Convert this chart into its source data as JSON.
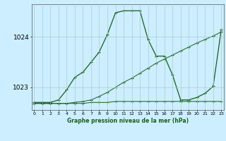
{
  "title": "Graphe pression niveau de la mer (hPa)",
  "background_color": "#cceeff",
  "grid_color": "#aacccc",
  "line_color": "#1a5e1a",
  "x_labels": [
    "0",
    "1",
    "2",
    "3",
    "4",
    "5",
    "6",
    "7",
    "8",
    "9",
    "10",
    "11",
    "12",
    "13",
    "14",
    "15",
    "16",
    "17",
    "18",
    "19",
    "20",
    "21",
    "22",
    "23"
  ],
  "ylim": [
    1022.55,
    1024.65
  ],
  "yticks": [
    1023,
    1024
  ],
  "xlim": [
    -0.3,
    23.3
  ],
  "series_main": [
    1022.7,
    1022.7,
    1022.7,
    1022.75,
    1022.95,
    1023.2,
    1023.3,
    1023.5,
    1023.7,
    1024.05,
    1024.48,
    1024.52,
    1024.52,
    1024.52,
    1023.95,
    1023.62,
    1023.62,
    1023.25,
    1022.75,
    1022.75,
    1022.8,
    1022.88,
    1023.02,
    1024.15
  ],
  "series_diag": [
    1022.68,
    1022.68,
    1022.68,
    1022.68,
    1022.68,
    1022.7,
    1022.72,
    1022.75,
    1022.82,
    1022.9,
    1023.0,
    1023.1,
    1023.18,
    1023.28,
    1023.38,
    1023.48,
    1023.56,
    1023.64,
    1023.72,
    1023.8,
    1023.88,
    1023.95,
    1024.02,
    1024.1
  ],
  "series_flat": [
    1022.68,
    1022.68,
    1022.68,
    1022.68,
    1022.68,
    1022.68,
    1022.68,
    1022.7,
    1022.7,
    1022.7,
    1022.72,
    1022.72,
    1022.72,
    1022.72,
    1022.72,
    1022.72,
    1022.72,
    1022.72,
    1022.72,
    1022.72,
    1022.72,
    1022.72,
    1022.72,
    1022.72
  ]
}
